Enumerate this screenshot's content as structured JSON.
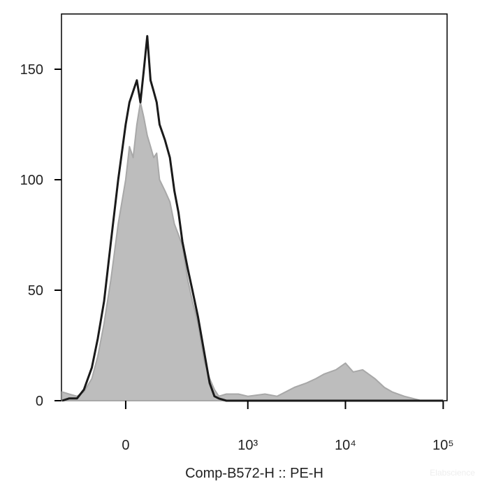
{
  "chart_data": {
    "type": "histogram-overlay",
    "xlabel": "Comp-B572-H :: PE-H",
    "watermark": "Elabscience",
    "xscale": "asinh",
    "asinh_cofactor": 113,
    "xlim": [
      -244,
      109600
    ],
    "xticks": [
      0,
      {
        "value": 1000,
        "label": "10³"
      },
      {
        "value": 10000,
        "label": "10⁴"
      },
      {
        "value": 100000,
        "label": "10⁵"
      }
    ],
    "ylim": [
      0,
      175
    ],
    "yticks": [
      0,
      50,
      100,
      150
    ],
    "x": [
      -240,
      -200,
      -160,
      -130,
      -100,
      -80,
      -60,
      -40,
      -20,
      0,
      10,
      20,
      30,
      40,
      50,
      60,
      70,
      80,
      90,
      100,
      120,
      140,
      160,
      180,
      200,
      230,
      260,
      300,
      350,
      400,
      450,
      500,
      600,
      800,
      1000,
      1500,
      2000,
      3000,
      4000,
      5000,
      6000,
      8000,
      10000,
      12000,
      15000,
      20000,
      25000,
      30000,
      40000,
      60000,
      100000
    ],
    "series": [
      {
        "color": "#1a1a1a",
        "fill": false,
        "values": [
          0,
          1,
          1,
          5,
          15,
          28,
          45,
          72,
          100,
          125,
          135,
          140,
          145,
          135,
          150,
          165,
          145,
          140,
          135,
          125,
          118,
          110,
          95,
          85,
          72,
          60,
          50,
          38,
          22,
          8,
          2,
          1,
          0,
          0,
          0,
          0,
          0,
          0,
          0,
          0,
          0,
          0,
          0,
          0,
          0,
          0,
          0,
          0,
          0,
          0,
          0
        ]
      },
      {
        "color": "#bdbdbd",
        "fill": true,
        "values": [
          4,
          3,
          2,
          4,
          10,
          20,
          35,
          55,
          80,
          100,
          115,
          110,
          125,
          135,
          128,
          120,
          115,
          110,
          112,
          100,
          95,
          90,
          80,
          75,
          70,
          55,
          45,
          35,
          18,
          10,
          5,
          2,
          3,
          3,
          2,
          3,
          2,
          6,
          8,
          10,
          12,
          14,
          17,
          13,
          14,
          10,
          6,
          4,
          2,
          0,
          0
        ]
      }
    ]
  }
}
